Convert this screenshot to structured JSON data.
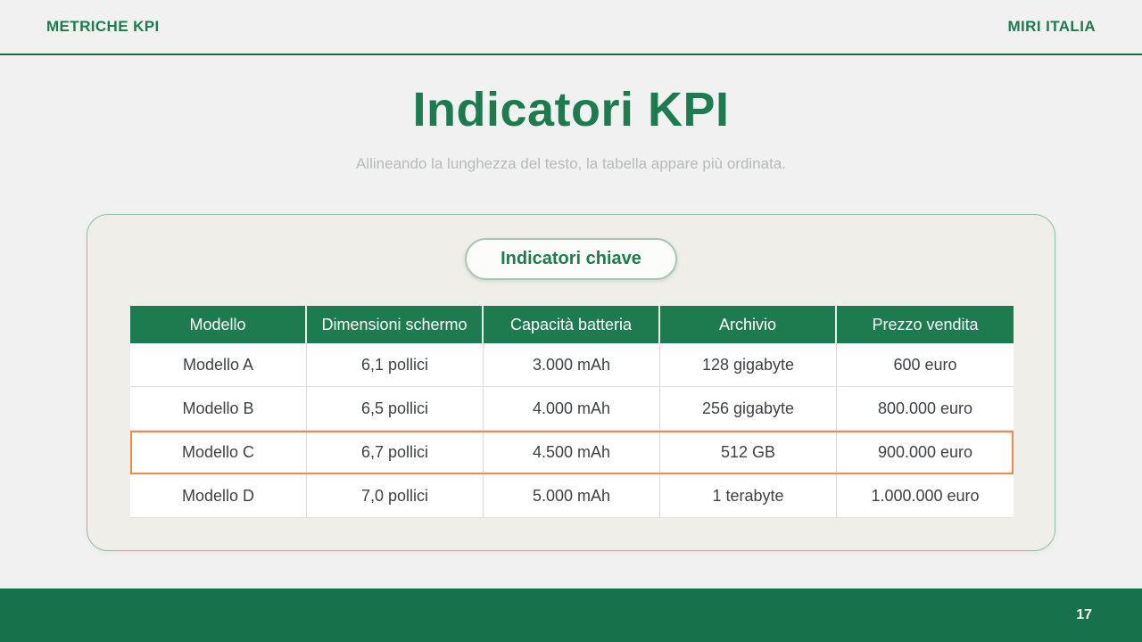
{
  "topbar": {
    "left": "METRICHE KPI",
    "right": "MIRI ITALIA"
  },
  "title": "Indicatori KPI",
  "subtitle": "Allineando la lunghezza del testo, la tabella appare più ordinata.",
  "card": {
    "badge": "Indicatori chiave",
    "table": {
      "headers": [
        "Modello",
        "Dimensioni schermo",
        "Capacità batteria",
        "Archivio",
        "Prezzo vendita"
      ],
      "rows": [
        [
          "Modello A",
          "6,1 pollici",
          "3.000 mAh",
          "128 gigabyte",
          "600 euro"
        ],
        [
          "Modello B",
          "6,5 pollici",
          "4.000 mAh",
          "256 gigabyte",
          "800.000 euro"
        ],
        [
          "Modello C",
          "6,7 pollici",
          "4.500 mAh",
          "512 GB",
          "900.000 euro"
        ],
        [
          "Modello D",
          "7,0 pollici",
          "5.000 mAh",
          "1 terabyte",
          "1.000.000 euro"
        ]
      ],
      "highlighted_row_index": 2
    }
  },
  "footer": {
    "page_number": "17"
  },
  "colors": {
    "accent_green": "#1e7b4f",
    "footer_green": "#17714a",
    "topbar_rule_green": "#1a6b45",
    "highlight_orange": "#ec8a50",
    "card_bg": "#f0eee8",
    "card_border": "#93bda7",
    "page_bg": "#f0f1f0",
    "body_text": "#3f4245",
    "subtitle_gray": "#b7bab8"
  }
}
